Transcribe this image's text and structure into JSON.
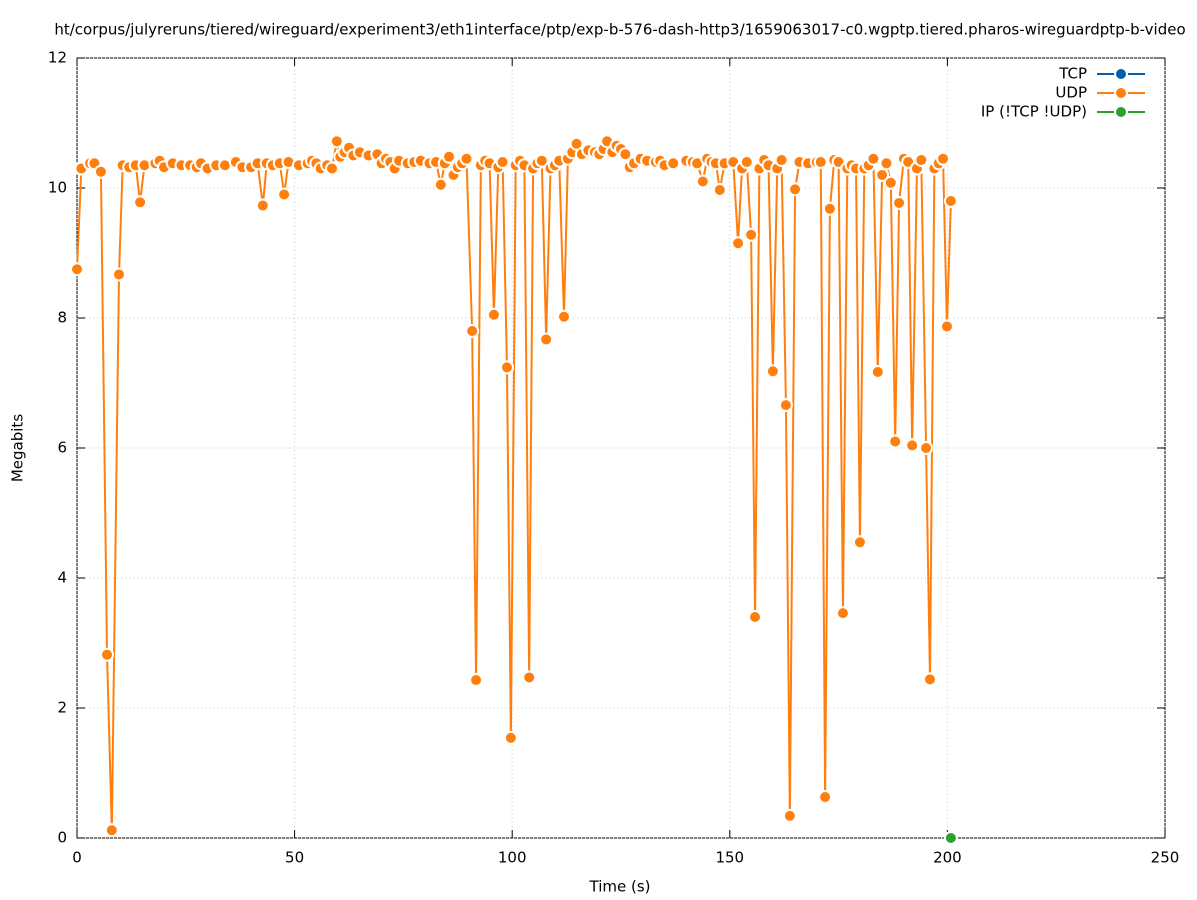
{
  "chart_data": {
    "type": "line",
    "title": "ht/corpus/julyreruns/tiered/wireguard/experiment3/eth1interface/ptp/exp-b-576-dash-http3/1659063017-c0.wgptp.tiered.pharos-wireguardptp-b-video",
    "xlabel": "Time (s)",
    "ylabel": "Megabits",
    "xlim": [
      0,
      250
    ],
    "xticks": [
      0,
      50,
      100,
      150,
      200,
      250
    ],
    "ylim": [
      0,
      12
    ],
    "yticks": [
      0,
      2,
      4,
      6,
      8,
      10,
      12
    ],
    "grid": true,
    "legend": "top-right",
    "series": [
      {
        "name": "TCP",
        "color": "#0060ad",
        "x": [],
        "values": []
      },
      {
        "name": "UDP",
        "color": "#ff7f0e",
        "x": [
          0,
          1,
          3,
          4,
          5.5,
          6.9,
          8,
          9.65,
          10.5,
          12,
          13.5,
          14.5,
          15.5,
          18,
          19,
          20,
          22,
          24,
          26,
          27.5,
          28.5,
          30,
          32,
          34,
          36.5,
          38,
          40,
          41.5,
          42.7,
          43.6,
          45,
          46.6,
          47.6,
          48.6,
          51,
          53,
          54,
          55,
          56,
          57.5,
          58.6,
          59.7,
          60.5,
          61.5,
          62.5,
          63.5,
          65,
          67,
          69,
          70,
          71,
          72,
          73,
          74,
          76,
          77.5,
          79,
          81,
          82.5,
          83.6,
          84.5,
          85.5,
          86.5,
          87.5,
          88.5,
          89.5,
          90.8,
          91.7,
          92.8,
          93.8,
          94.8,
          95.8,
          96.8,
          97.8,
          98.8,
          99.7,
          100.8,
          101.8,
          102.8,
          103.9,
          104.8,
          105.8,
          106.8,
          107.8,
          108.8,
          109.8,
          110.8,
          111.9,
          112.8,
          113.8,
          114.8,
          116,
          117.5,
          119,
          120,
          121,
          121.8,
          123,
          124,
          125,
          126,
          127,
          128,
          129.5,
          131,
          133,
          134,
          135,
          137,
          140,
          141.5,
          142.5,
          143.8,
          144.8,
          145.8,
          146.8,
          147.7,
          148.8,
          150.8,
          151.9,
          152.8,
          153.9,
          154.9,
          155.8,
          156.8,
          157.9,
          158.9,
          159.9,
          160.9,
          161.9,
          162.9,
          163.8,
          165,
          166,
          168,
          170,
          170.9,
          171.9,
          173,
          174,
          175,
          176,
          177,
          178,
          179,
          179.9,
          180.9,
          181.9,
          183,
          184,
          185,
          186,
          187,
          188,
          188.9,
          190,
          191,
          191.9,
          193,
          194,
          195.1,
          196,
          197,
          198,
          199,
          199.9,
          200.8
        ],
        "values": [
          8.75,
          10.3,
          10.38,
          10.38,
          10.25,
          2.82,
          0.12,
          8.67,
          10.35,
          10.32,
          10.35,
          9.78,
          10.35,
          10.38,
          10.42,
          10.32,
          10.38,
          10.35,
          10.35,
          10.32,
          10.38,
          10.3,
          10.35,
          10.35,
          10.4,
          10.32,
          10.32,
          10.38,
          9.73,
          10.38,
          10.35,
          10.38,
          9.9,
          10.4,
          10.35,
          10.38,
          10.42,
          10.38,
          10.3,
          10.35,
          10.3,
          10.72,
          10.48,
          10.55,
          10.62,
          10.5,
          10.55,
          10.5,
          10.52,
          10.38,
          10.45,
          10.4,
          10.3,
          10.42,
          10.38,
          10.4,
          10.42,
          10.38,
          10.4,
          10.05,
          10.38,
          10.48,
          10.2,
          10.32,
          10.38,
          10.45,
          7.8,
          2.43,
          10.35,
          10.42,
          10.38,
          8.05,
          10.32,
          10.4,
          7.24,
          1.54,
          10.35,
          10.42,
          10.35,
          2.47,
          10.3,
          10.38,
          10.42,
          7.67,
          10.3,
          10.35,
          10.42,
          8.02,
          10.45,
          10.55,
          10.68,
          10.52,
          10.58,
          10.55,
          10.52,
          10.6,
          10.72,
          10.55,
          10.65,
          10.6,
          10.52,
          10.32,
          10.38,
          10.45,
          10.42,
          10.4,
          10.42,
          10.35,
          10.38,
          10.42,
          10.4,
          10.38,
          10.1,
          10.45,
          10.4,
          10.38,
          9.97,
          10.38,
          10.4,
          9.15,
          10.3,
          10.4,
          9.28,
          3.4,
          10.3,
          10.43,
          10.35,
          7.18,
          10.3,
          10.43,
          6.66,
          0.34,
          9.98,
          10.4,
          10.38,
          10.4,
          10.4,
          0.63,
          9.68,
          10.43,
          10.4,
          3.46,
          10.3,
          10.35,
          10.3,
          4.55,
          10.3,
          10.35,
          10.45,
          7.17,
          10.2,
          10.38,
          10.08,
          6.1,
          9.77,
          10.45,
          10.4,
          6.04,
          10.3,
          10.43,
          6.0,
          2.44,
          10.3,
          10.38,
          10.45,
          7.87,
          9.8
        ]
      },
      {
        "name": "IP (!TCP  !UDP)",
        "color": "#2ca02c",
        "x": [
          200.8
        ],
        "values": [
          0
        ]
      }
    ]
  }
}
